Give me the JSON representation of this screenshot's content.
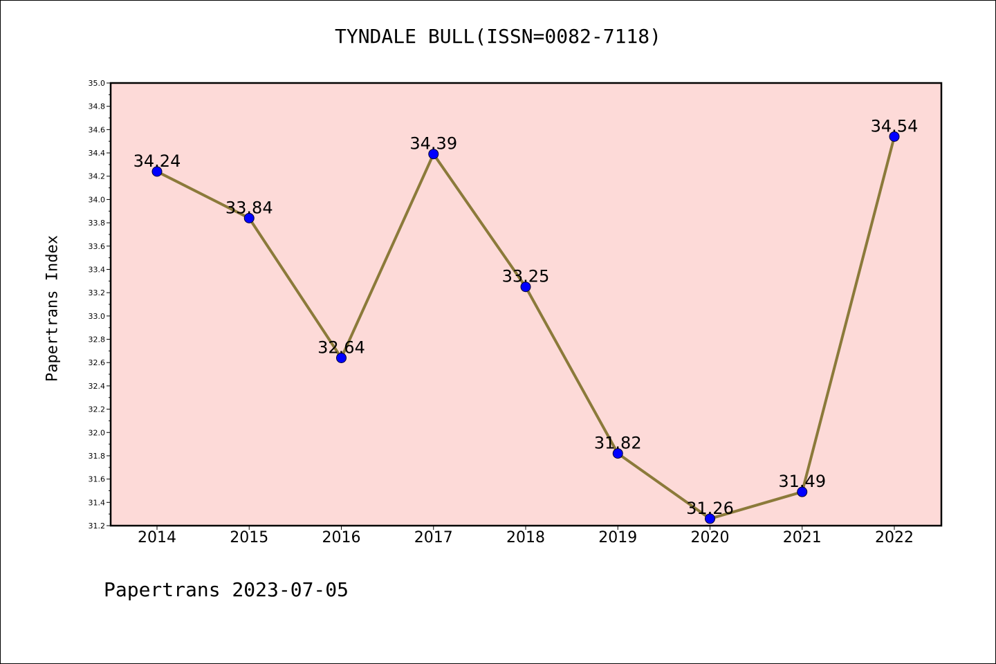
{
  "chart_data": {
    "type": "line",
    "title": "TYNDALE BULL(ISSN=0082-7118)",
    "ylabel": "Papertrans Index",
    "xlabel": "",
    "footer": "Papertrans 2023-07-05",
    "categories": [
      "2014",
      "2015",
      "2016",
      "2017",
      "2018",
      "2019",
      "2020",
      "2021",
      "2022"
    ],
    "series": [
      {
        "values": [
          34.24,
          33.84,
          32.64,
          34.39,
          33.25,
          31.82,
          31.26,
          31.49,
          34.54
        ],
        "labels": [
          "34.24",
          "33.84",
          "32.64",
          "34.39",
          "33.25",
          "31.82",
          "31.26",
          "31.49",
          "34.54"
        ]
      }
    ],
    "ylim": [
      31.2,
      35.0
    ],
    "yticks": [
      "31.2",
      "31.4",
      "31.6",
      "31.8",
      "32.0",
      "32.2",
      "32.4",
      "32.6",
      "32.8",
      "33.0",
      "33.2",
      "33.4",
      "33.6",
      "33.8",
      "34.0",
      "34.2",
      "34.4",
      "34.6",
      "34.8",
      "35.0"
    ],
    "grid": false,
    "colors": {
      "plot_background": "#fddad8",
      "line": "#8b7a3a",
      "marker": "#0000ff",
      "axis": "#000000"
    }
  }
}
